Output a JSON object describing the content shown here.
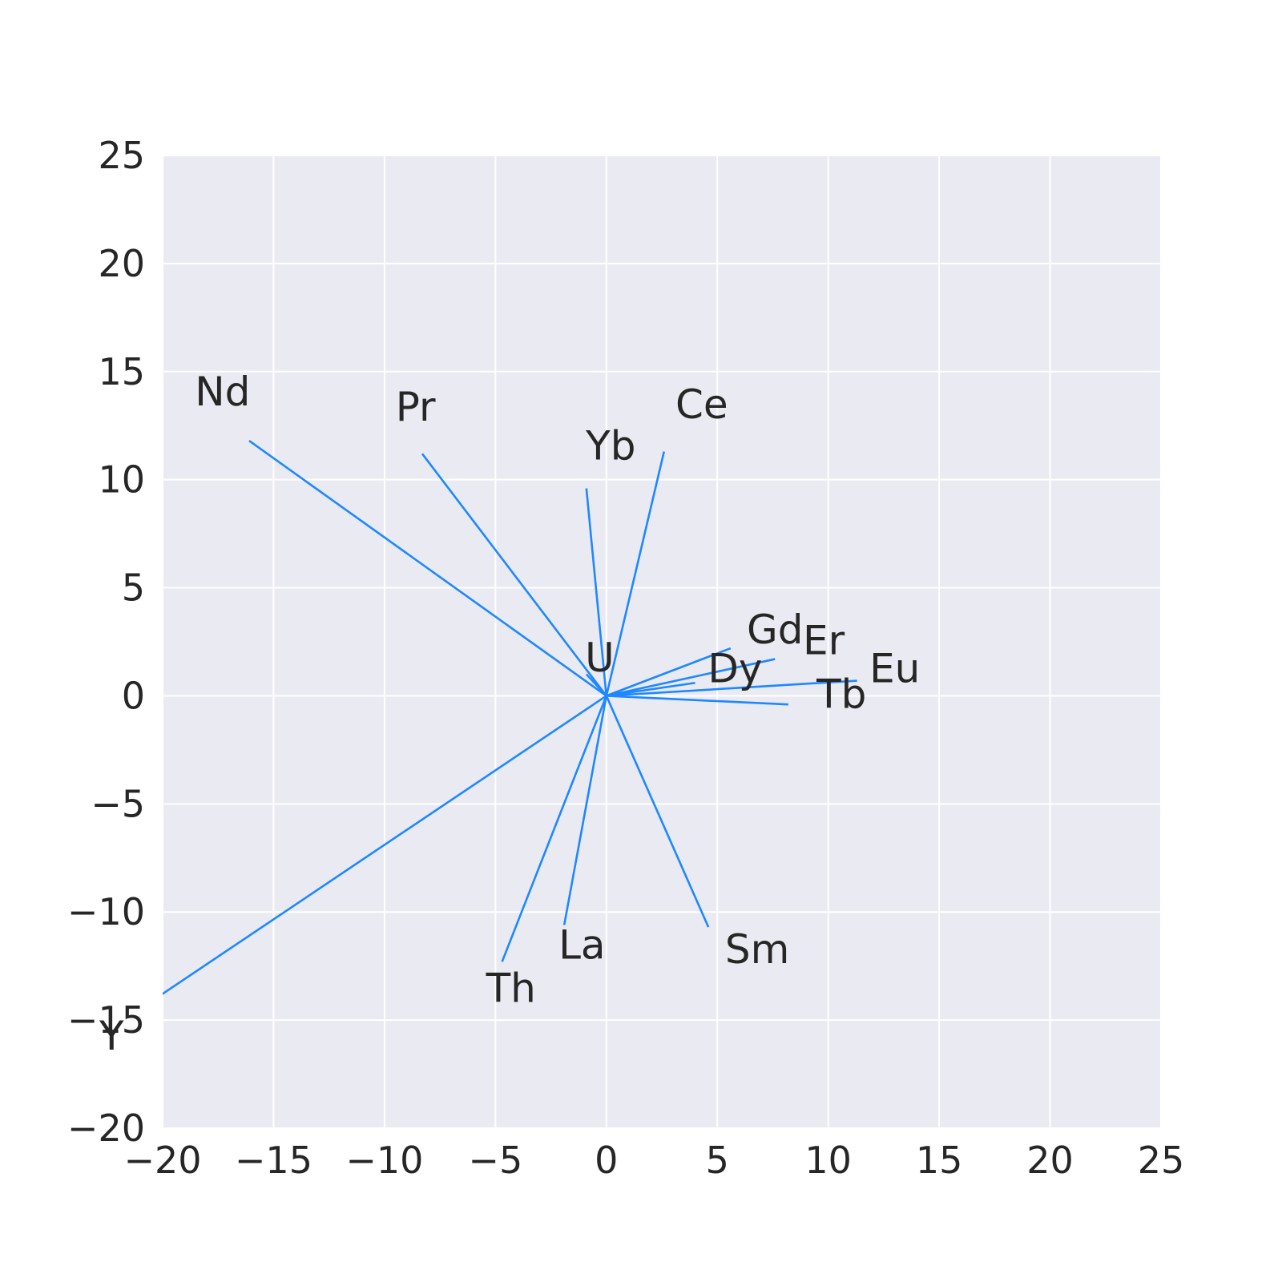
{
  "chart_data": {
    "type": "line",
    "title": "",
    "xlabel": "",
    "ylabel": "",
    "xlim": [
      -20,
      25
    ],
    "ylim": [
      -20,
      25
    ],
    "xticks": [
      -20,
      -15,
      -10,
      -5,
      0,
      5,
      10,
      15,
      20,
      25
    ],
    "yticks": [
      -20,
      -15,
      -10,
      -5,
      0,
      5,
      10,
      15,
      20,
      25
    ],
    "xtick_labels": [
      "−20",
      "−15",
      "−10",
      "−5",
      "0",
      "5",
      "10",
      "15",
      "20",
      "25"
    ],
    "ytick_labels": [
      "−20",
      "−15",
      "−10",
      "−5",
      "0",
      "5",
      "10",
      "15",
      "20",
      "25"
    ],
    "grid": true,
    "background_color": "#eaeaf2",
    "line_color": "#1e88ff",
    "vectors": [
      {
        "label": "Nd",
        "x": -16.1,
        "y": 11.8,
        "label_x": -17.3,
        "label_y": 14.1
      },
      {
        "label": "Pr",
        "x": -8.3,
        "y": 11.2,
        "label_x": -8.6,
        "label_y": 13.4
      },
      {
        "label": "Ce",
        "x": 2.6,
        "y": 11.3,
        "label_x": 4.3,
        "label_y": 13.5
      },
      {
        "label": "Yb",
        "x": -0.9,
        "y": 9.6,
        "label_x": 0.2,
        "label_y": 11.6
      },
      {
        "label": "U",
        "x": -0.9,
        "y": 1.0,
        "label_x": -0.3,
        "label_y": 1.8
      },
      {
        "label": "Gd",
        "x": 5.6,
        "y": 2.2,
        "label_x": 7.6,
        "label_y": 3.1
      },
      {
        "label": "Er",
        "x": 7.6,
        "y": 1.7,
        "label_x": 9.8,
        "label_y": 2.6
      },
      {
        "label": "Dy",
        "x": 4.0,
        "y": 0.6,
        "label_x": 5.8,
        "label_y": 1.3
      },
      {
        "label": "Eu",
        "x": 11.3,
        "y": 0.7,
        "label_x": 13.0,
        "label_y": 1.3
      },
      {
        "label": "Tb",
        "x": 8.2,
        "y": -0.4,
        "label_x": 10.6,
        "label_y": 0.1
      },
      {
        "label": "Sm",
        "x": 4.6,
        "y": -10.7,
        "label_x": 6.8,
        "label_y": -11.7
      },
      {
        "label": "La",
        "x": -1.9,
        "y": -10.6,
        "label_x": -1.1,
        "label_y": -11.5
      },
      {
        "label": "Th",
        "x": -4.7,
        "y": -12.3,
        "label_x": -4.3,
        "label_y": -13.5
      },
      {
        "label": "Y",
        "x": -20.6,
        "y": -14.2,
        "label_x": -22.3,
        "label_y": -15.7
      }
    ]
  }
}
